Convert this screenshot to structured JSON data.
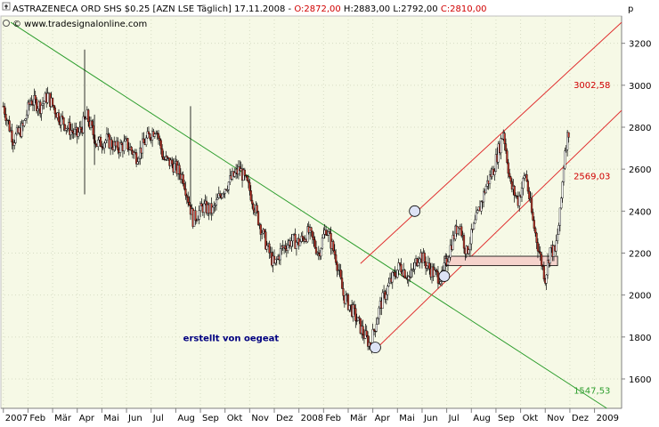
{
  "header": {
    "title_main": "ASTRAZENECA ORD SHS $0.25 [AZN LSE  Täglich] 17.11.2008 - ",
    "open": "O:2872,00",
    "high": " H:2883,00",
    "low": " L:2792,00",
    "close": " C:2810,00",
    "watermark": "© www.tradesignalonline.com",
    "axis_unit": "p"
  },
  "colors": {
    "background": "#f6f9e6",
    "frame": "#c0c0c0",
    "candle_body_down": "#c0392b",
    "candle_body_up": "#ffffff",
    "trend_green": "#2e9e2e",
    "channel_red": "#e03030",
    "header_red": "#d00000",
    "box_fill": "#f5d3cc",
    "circle_fill": "#dde3f5",
    "annotation_text": "#000080"
  },
  "chart_data": {
    "type": "candlestick",
    "y_range": [
      1460,
      3330
    ],
    "y_ticks": [
      1600,
      1800,
      2000,
      2200,
      2400,
      2600,
      2800,
      3000,
      3200
    ],
    "y_tick_labels": [
      "1600",
      "1800",
      "2000",
      "2200",
      "2400",
      "2600",
      "2800",
      "3000",
      "3200"
    ],
    "x_labels": [
      "2007",
      "Feb",
      "Mär",
      "Apr",
      "Mai",
      "Jun",
      "Jul",
      "Aug",
      "Sep",
      "Okt",
      "Nov",
      "Dez",
      "2008",
      "Feb",
      "Mär",
      "Apr",
      "Mai",
      "Jun",
      "Jul",
      "Aug",
      "Sep",
      "Okt",
      "Nov",
      "Dez",
      "2009"
    ],
    "x_label_months": [
      0,
      1,
      2,
      3,
      4,
      5,
      6,
      7,
      8,
      9,
      10,
      11,
      12,
      13,
      14,
      15,
      16,
      17,
      18,
      19,
      20,
      21,
      22,
      23,
      24
    ],
    "x_range_months": [
      -0.1,
      25.1
    ],
    "price_path": [
      [
        0.0,
        2900
      ],
      [
        0.4,
        2740
      ],
      [
        0.8,
        2800
      ],
      [
        1.1,
        2930
      ],
      [
        1.5,
        2900
      ],
      [
        1.8,
        2950
      ],
      [
        2.2,
        2860
      ],
      [
        2.6,
        2800
      ],
      [
        3.0,
        2760
      ],
      [
        3.4,
        2850
      ],
      [
        3.8,
        2720
      ],
      [
        4.2,
        2740
      ],
      [
        4.6,
        2700
      ],
      [
        5.0,
        2720
      ],
      [
        5.4,
        2660
      ],
      [
        5.8,
        2740
      ],
      [
        6.2,
        2800
      ],
      [
        6.5,
        2650
      ],
      [
        6.9,
        2620
      ],
      [
        7.3,
        2560
      ],
      [
        7.7,
        2360
      ],
      [
        8.1,
        2420
      ],
      [
        8.5,
        2400
      ],
      [
        8.9,
        2500
      ],
      [
        9.3,
        2560
      ],
      [
        9.6,
        2600
      ],
      [
        10.0,
        2500
      ],
      [
        10.3,
        2380
      ],
      [
        10.7,
        2230
      ],
      [
        11.0,
        2140
      ],
      [
        11.3,
        2220
      ],
      [
        11.7,
        2260
      ],
      [
        12.0,
        2250
      ],
      [
        12.4,
        2300
      ],
      [
        12.8,
        2200
      ],
      [
        13.1,
        2320
      ],
      [
        13.5,
        2180
      ],
      [
        13.8,
        2000
      ],
      [
        14.2,
        1920
      ],
      [
        14.6,
        1820
      ],
      [
        14.9,
        1760
      ],
      [
        15.3,
        1950
      ],
      [
        15.7,
        2060
      ],
      [
        16.1,
        2140
      ],
      [
        16.5,
        2080
      ],
      [
        16.9,
        2200
      ],
      [
        17.2,
        2140
      ],
      [
        17.5,
        2100
      ],
      [
        17.8,
        2080
      ],
      [
        18.2,
        2250
      ],
      [
        18.5,
        2350
      ],
      [
        18.8,
        2200
      ],
      [
        19.2,
        2360
      ],
      [
        19.6,
        2520
      ],
      [
        19.9,
        2600
      ],
      [
        20.3,
        2780
      ],
      [
        20.6,
        2520
      ],
      [
        20.9,
        2450
      ],
      [
        21.2,
        2580
      ],
      [
        21.5,
        2350
      ],
      [
        21.8,
        2180
      ],
      [
        22.0,
        2080
      ],
      [
        22.2,
        2220
      ],
      [
        22.4,
        2200
      ],
      [
        22.6,
        2380
      ],
      [
        22.8,
        2700
      ],
      [
        23.0,
        2810
      ]
    ],
    "spikes": [
      {
        "month": 3.3,
        "high": 3170,
        "low": 2480
      },
      {
        "month": 3.7,
        "high": 2860,
        "low": 2620
      },
      {
        "month": 7.6,
        "high": 2900,
        "low": 2420
      }
    ],
    "green_trend_line": [
      [
        0.3,
        3300
      ],
      [
        24.5,
        1460
      ]
    ],
    "red_channel_upper": [
      [
        14.5,
        2150
      ],
      [
        25.1,
        3300
      ]
    ],
    "red_channel_lower": [
      [
        15.1,
        1740
      ],
      [
        25.1,
        2880
      ]
    ],
    "rect_zone": {
      "month_start": 17.9,
      "month_end": 22.5,
      "price_low": 2140,
      "price_high": 2185
    },
    "circle_markers": [
      [
        15.1,
        1750
      ],
      [
        16.7,
        2400
      ],
      [
        17.9,
        2090
      ]
    ],
    "value_labels": [
      {
        "text": "3002,58",
        "month": 23.15,
        "price": 3002.58,
        "color": "#d00000"
      },
      {
        "text": "2569,03",
        "month": 23.15,
        "price": 2569.03,
        "color": "#d00000"
      },
      {
        "text": "1547,53",
        "month": 23.15,
        "price": 1547.53,
        "color": "#2e9e2e"
      }
    ],
    "annotation": {
      "text": "erstellt von oegeat",
      "month": 7.3,
      "price": 1780
    }
  }
}
